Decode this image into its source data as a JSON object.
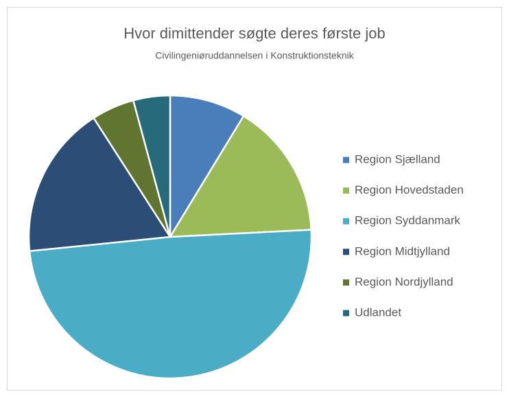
{
  "chart_data": {
    "type": "pie",
    "title": "Hvor dimittender søgte deres første job",
    "subtitle": "Civilingeniøruddannelsen i Konstruktionsteknik",
    "categories": [
      "Region Sjælland",
      "Region Hovedstaden",
      "Region Syddanmark",
      "Region Midtjylland",
      "Region Nordjylland",
      "Udlandet"
    ],
    "values": [
      8.7,
      15.5,
      49.2,
      17.5,
      4.9,
      4.2
    ],
    "colors": [
      "#4a7ebb",
      "#9bbb59",
      "#4bacc6",
      "#2c4d75",
      "#5f7530",
      "#276a7c"
    ],
    "legend": "right"
  }
}
